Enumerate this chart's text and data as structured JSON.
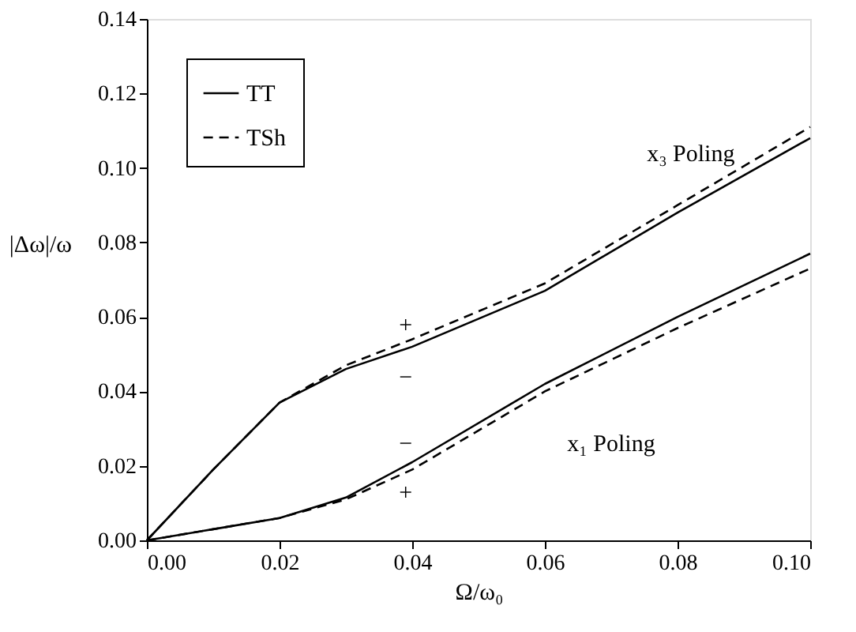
{
  "chart_data": {
    "type": "line",
    "xlabel": "Ω/ω₀",
    "ylabel": "|Δω|/ω",
    "x": [
      0,
      0.01,
      0.02,
      0.03,
      0.04,
      0.06,
      0.08,
      0.1
    ],
    "series": [
      {
        "name": "TT",
        "color": "#000000",
        "line_style": "solid",
        "values": [
          0,
          0.019,
          0.037,
          0.046,
          0.052,
          0.067,
          0.088,
          0.108
        ]
      },
      {
        "name": "TSh",
        "color": "#000000",
        "line_style": "dashed",
        "values": [
          0,
          0.019,
          0.037,
          0.047,
          0.054,
          0.069,
          0.09,
          0.111
        ]
      },
      {
        "color": "#000000",
        "line_style": "solid",
        "values": [
          0,
          0.003,
          0.006,
          0.0115,
          0.021,
          0.042,
          0.06,
          0.077
        ]
      },
      {
        "color": "#000000",
        "line_style": "dashed",
        "values": [
          0,
          0.003,
          0.006,
          0.011,
          0.019,
          0.04,
          0.057,
          0.073
        ]
      }
    ],
    "xlim": [
      0,
      0.1
    ],
    "ylim": [
      0,
      0.14
    ],
    "xticks": [
      {
        "value": 0,
        "label": "0.00"
      },
      {
        "value": 0.02,
        "label": "0.02"
      },
      {
        "value": 0.04,
        "label": "0.04"
      },
      {
        "value": 0.06,
        "label": "0.06"
      },
      {
        "value": 0.08,
        "label": "0.08"
      },
      {
        "value": 0.1,
        "label": "0.10"
      }
    ],
    "yticks": [
      {
        "value": 0,
        "label": "0.00"
      },
      {
        "value": 0.02,
        "label": "0.02"
      },
      {
        "value": 0.04,
        "label": "0.04"
      },
      {
        "value": 0.06,
        "label": "0.06"
      },
      {
        "value": 0.08,
        "label": "0.08"
      },
      {
        "value": 0.1,
        "label": "0.10"
      },
      {
        "value": 0.12,
        "label": "0.12"
      },
      {
        "value": 0.14,
        "label": "0.14"
      }
    ],
    "annotations": [
      "x₃ Poling",
      "x₁ Poling",
      "+",
      "−",
      "−",
      "+"
    ],
    "grid": false,
    "legend": "top left",
    "marker": "none"
  }
}
